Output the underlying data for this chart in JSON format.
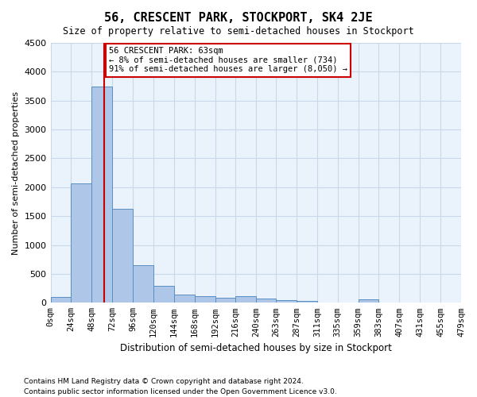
{
  "title": "56, CRESCENT PARK, STOCKPORT, SK4 2JE",
  "subtitle": "Size of property relative to semi-detached houses in Stockport",
  "xlabel": "Distribution of semi-detached houses by size in Stockport",
  "ylabel": "Number of semi-detached properties",
  "footnote1": "Contains HM Land Registry data © Crown copyright and database right 2024.",
  "footnote2": "Contains public sector information licensed under the Open Government Licence v3.0.",
  "bar_color": "#aec6e8",
  "bar_edge_color": "#5a8fc2",
  "grid_color": "#c8d8e8",
  "background_color": "#eaf2fb",
  "property_size": 63,
  "property_label": "56 CRESCENT PARK: 63sqm",
  "pct_smaller": 8,
  "pct_larger": 91,
  "n_smaller": 734,
  "n_larger": 8050,
  "vline_color": "#cc0000",
  "annotation_box_color": "#cc0000",
  "ylim": [
    0,
    4500
  ],
  "yticks": [
    0,
    500,
    1000,
    1500,
    2000,
    2500,
    3000,
    3500,
    4000,
    4500
  ],
  "bin_edges": [
    0,
    24,
    48,
    72,
    96,
    120,
    144,
    168,
    192,
    216,
    240,
    263,
    287,
    311,
    335,
    359,
    383,
    407,
    431,
    455,
    479
  ],
  "bin_labels": [
    "0sqm",
    "24sqm",
    "48sqm",
    "72sqm",
    "96sqm",
    "120sqm",
    "144sqm",
    "168sqm",
    "192sqm",
    "216sqm",
    "240sqm",
    "263sqm",
    "287sqm",
    "311sqm",
    "335sqm",
    "359sqm",
    "383sqm",
    "407sqm",
    "431sqm",
    "455sqm",
    "479sqm"
  ],
  "counts": [
    100,
    2070,
    3750,
    1620,
    650,
    290,
    145,
    115,
    90,
    110,
    70,
    45,
    30,
    10,
    3,
    55,
    2,
    2,
    2,
    2
  ]
}
